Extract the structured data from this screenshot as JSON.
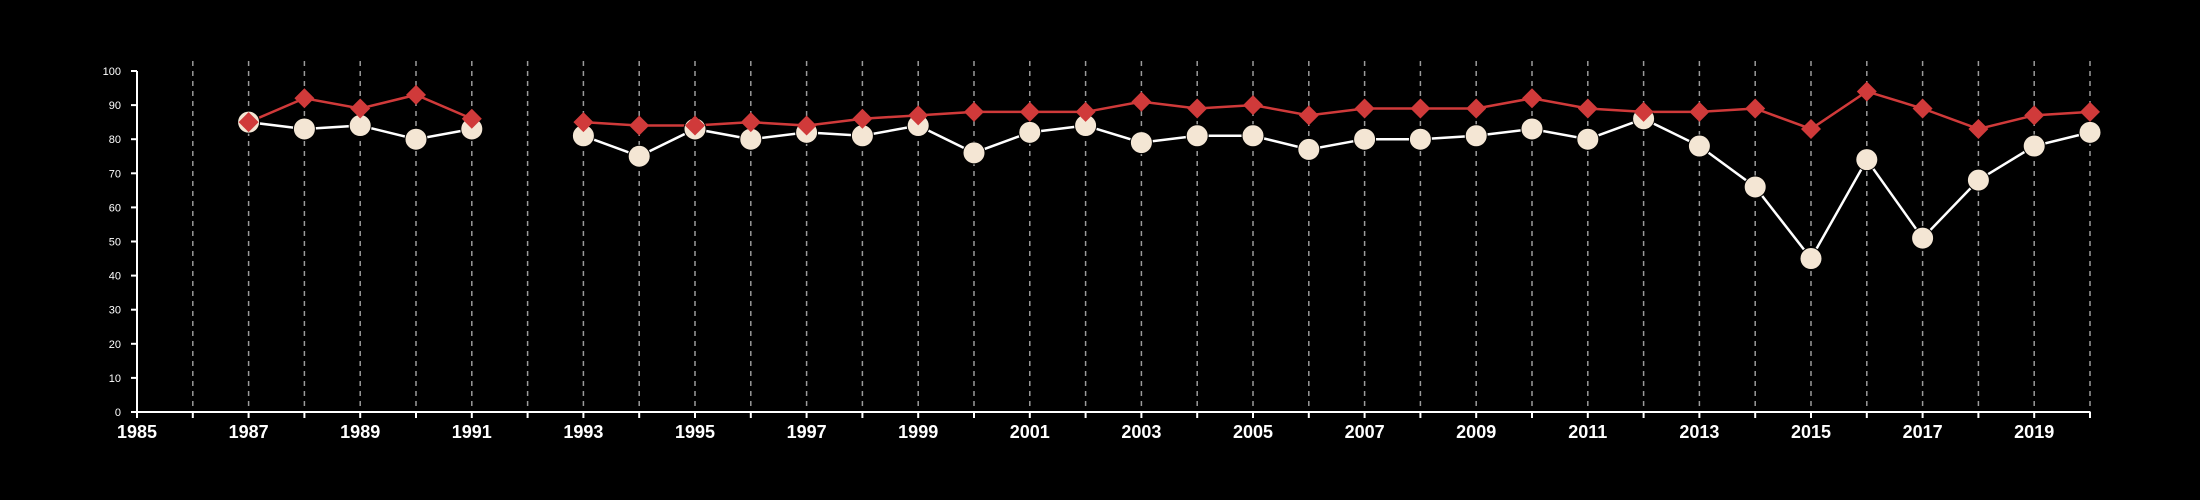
{
  "chart_data": {
    "type": "line",
    "title": "",
    "xlabel": "",
    "ylabel": "",
    "xlim": [
      1985,
      2020
    ],
    "ylim": [
      0,
      100
    ],
    "x_ticks": [
      1985,
      1987,
      1989,
      1991,
      1993,
      1995,
      1997,
      1999,
      2001,
      2003,
      2005,
      2007,
      2009,
      2011,
      2013,
      2015,
      2017,
      2019
    ],
    "y_ticks": [
      0,
      10,
      20,
      30,
      40,
      50,
      60,
      70,
      80,
      90,
      100
    ],
    "grid": "vertical dashed lines at every year",
    "legend": "none",
    "x": [
      1987,
      1988,
      1989,
      1990,
      1991,
      1992,
      1993,
      1994,
      1995,
      1996,
      1997,
      1998,
      1999,
      2000,
      2001,
      2002,
      2003,
      2004,
      2005,
      2006,
      2007,
      2008,
      2009,
      2010,
      2011,
      2012,
      2013,
      2014,
      2015,
      2016,
      2017,
      2018,
      2019,
      2020
    ],
    "series": [
      {
        "marker": "diamond",
        "color": "#d03a3a",
        "values": [
          85,
          92,
          89,
          93,
          86,
          null,
          85,
          84,
          84,
          85,
          84,
          86,
          87,
          88,
          88,
          88,
          91,
          89,
          90,
          87,
          89,
          89,
          89,
          92,
          89,
          88,
          88,
          89,
          83,
          94,
          89,
          83,
          87,
          88
        ]
      },
      {
        "marker": "circle",
        "color": "#f4e6d4",
        "line_color": "#ffffff",
        "values": [
          85,
          83,
          84,
          80,
          83,
          null,
          81,
          75,
          83,
          80,
          82,
          81,
          84,
          76,
          82,
          84,
          79,
          81,
          81,
          77,
          80,
          80,
          81,
          83,
          80,
          86,
          78,
          66,
          45,
          74,
          51,
          68,
          78,
          82
        ]
      }
    ]
  }
}
